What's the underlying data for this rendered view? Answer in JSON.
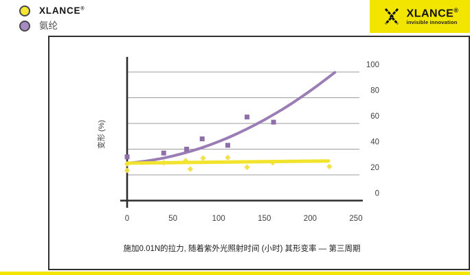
{
  "legend": {
    "items": [
      {
        "label": "XLANCE",
        "sup": "®",
        "swatch_color": "#F5E833",
        "swatch_outline": "#47474B"
      },
      {
        "label": "氨纶",
        "sup": "",
        "swatch_color": "#A78BC0",
        "swatch_outline": "#47474B"
      }
    ]
  },
  "logo": {
    "name": "XLANCE",
    "reg": "®",
    "tagline": "invisible innovation",
    "bg_color": "#F2E600"
  },
  "chart_data": {
    "type": "scatter",
    "title": "",
    "xlabel": "",
    "ylabel": "变形 (%)",
    "caption": "施加0.01N的拉力, 随着紫外光照射时间 (小时) 其形变率 — 第三周期",
    "xlim": [
      0,
      250
    ],
    "ylim": [
      0,
      100
    ],
    "x_ticks": [
      "0",
      "50",
      "100",
      "150",
      "200",
      "250"
    ],
    "x_tick_values": [
      0,
      50,
      100,
      150,
      200,
      250
    ],
    "y_ticks": [
      "0",
      "20",
      "40",
      "60",
      "80",
      "100"
    ],
    "y_tick_values": [
      0,
      20,
      40,
      60,
      80,
      100
    ],
    "grid": "horizontal",
    "y_axis_labels_position": "right",
    "colors": {
      "grid": "#9B9B9B",
      "axis": "#2B2B2D",
      "tick_text": "#3E3E40"
    },
    "series": [
      {
        "name": "XLANCE",
        "color": "#F2E32E",
        "marker_color": "#F0DF45",
        "marker": "diamond",
        "points": [
          [
            0,
            28.5
          ],
          [
            0,
            23.5
          ],
          [
            40,
            29.5
          ],
          [
            64,
            31
          ],
          [
            69,
            24.5
          ],
          [
            83,
            33
          ],
          [
            110,
            33.5
          ],
          [
            131,
            26
          ],
          [
            159,
            29.5
          ],
          [
            221,
            26.5
          ]
        ],
        "trend": [
          [
            0,
            29.1
          ],
          [
            220,
            30.8
          ]
        ]
      },
      {
        "name": "氨纶",
        "color": "#9B7DB5",
        "marker_color": "#8F6FA9",
        "marker": "square",
        "points": [
          [
            0,
            34
          ],
          [
            40,
            37
          ],
          [
            65,
            40
          ],
          [
            82,
            48
          ],
          [
            110,
            43
          ],
          [
            131,
            65
          ],
          [
            160,
            61
          ]
        ],
        "trend": [
          [
            0,
            29.1
          ],
          [
            10,
            29.8
          ],
          [
            20,
            30.7
          ],
          [
            30,
            31.8
          ],
          [
            40,
            33.1
          ],
          [
            50,
            34.7
          ],
          [
            60,
            36.5
          ],
          [
            70,
            38.5
          ],
          [
            80,
            40.7
          ],
          [
            90,
            43.2
          ],
          [
            100,
            45.9
          ],
          [
            110,
            48.8
          ],
          [
            120,
            52.0
          ],
          [
            130,
            55.4
          ],
          [
            140,
            59.0
          ],
          [
            150,
            62.8
          ],
          [
            160,
            66.9
          ],
          [
            170,
            71.1
          ],
          [
            180,
            75.6
          ],
          [
            190,
            80.4
          ],
          [
            200,
            85.3
          ],
          [
            210,
            90.5
          ],
          [
            220,
            95.9
          ],
          [
            227,
            99.7
          ]
        ]
      }
    ]
  }
}
